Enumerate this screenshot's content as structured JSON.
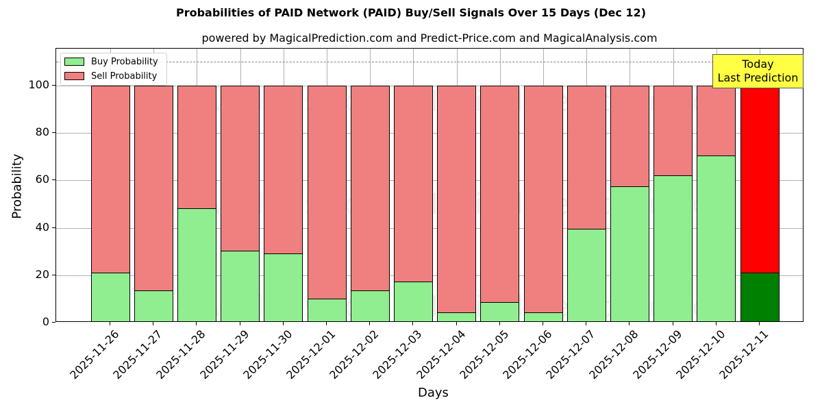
{
  "title": "Probabilities of PAID Network (PAID) Buy/Sell Signals Over 15 Days (Dec 12)",
  "subtitle": "powered by MagicalPrediction.com and Predict-Price.com and MagicalAnalysis.com",
  "legend": {
    "buy_label": "Buy Probability",
    "sell_label": "Sell Probability"
  },
  "annotation": {
    "line1": "Today",
    "line2": "Last Prediction"
  },
  "watermarks": [
    "MagicalAnalysis.com",
    "MagicalPrediction.com"
  ],
  "colors": {
    "buy": "#90ee90",
    "sell": "#f08080",
    "buy_today": "#008000",
    "sell_today": "#ff0000",
    "annotation_bg": "#ffff44"
  },
  "chart_data": {
    "type": "bar",
    "stacked": true,
    "title": "Probabilities of PAID Network (PAID) Buy/Sell Signals Over 15 Days (Dec 12)",
    "subtitle": "powered by MagicalPrediction.com and Predict-Price.com and MagicalAnalysis.com",
    "xlabel": "Days",
    "ylabel": "Probability",
    "ylim": [
      0,
      115
    ],
    "yticks": [
      0,
      20,
      40,
      60,
      80,
      100
    ],
    "grid": true,
    "legend_position": "upper left",
    "reference_line": {
      "y": 110,
      "style": "dashed",
      "color": "#808080"
    },
    "categories": [
      "2025-11-26",
      "2025-11-27",
      "2025-11-28",
      "2025-11-29",
      "2025-11-30",
      "2025-12-01",
      "2025-12-02",
      "2025-12-03",
      "2025-12-04",
      "2025-12-05",
      "2025-12-06",
      "2025-12-07",
      "2025-12-08",
      "2025-12-09",
      "2025-12-10",
      "2025-12-11"
    ],
    "series": [
      {
        "name": "Buy Probability",
        "values": [
          21.1,
          13.6,
          48.3,
          30.3,
          29.2,
          10.1,
          13.6,
          17.3,
          4.3,
          8.7,
          4.3,
          39.6,
          57.5,
          62.1,
          70.5,
          21.1
        ]
      },
      {
        "name": "Sell Probability",
        "values": [
          78.9,
          86.4,
          51.7,
          69.7,
          70.8,
          89.9,
          86.4,
          82.7,
          95.7,
          91.3,
          95.7,
          60.4,
          42.5,
          37.9,
          29.5,
          78.9
        ]
      }
    ],
    "highlight": {
      "index": 15,
      "label": "Today\nLast Prediction",
      "buy_color": "#008000",
      "sell_color": "#ff0000"
    }
  }
}
